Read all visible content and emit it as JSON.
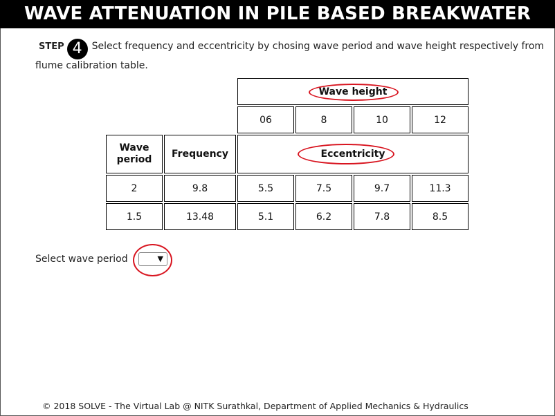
{
  "title": "WAVE ATTENUATION IN PILE BASED BREAKWATER",
  "step": {
    "label": "STEP",
    "number": "4",
    "instruction": "Select frequency and eccentricity by chosing wave period and wave height respectively from flume calibration table."
  },
  "table": {
    "wave_height_header": "Wave height",
    "wave_heights": [
      "06",
      "8",
      "10",
      "12"
    ],
    "wave_period_header": "Wave period",
    "frequency_header": "Frequency",
    "eccentricity_header": "Eccentricity",
    "rows": [
      {
        "period": "2",
        "frequency": "9.8",
        "eccentricity": [
          "5.5",
          "7.5",
          "9.7",
          "11.3"
        ]
      },
      {
        "period": "1.5",
        "frequency": "13.48",
        "eccentricity": [
          "5.1",
          "6.2",
          "7.8",
          "8.5"
        ]
      }
    ]
  },
  "select": {
    "label": "Select wave period",
    "value": "",
    "icon": "chevron-down-icon"
  },
  "footer": "© 2018 SOLVE - The Virtual Lab @ NITK Surathkal, Department of Applied Mechanics & Hydraulics",
  "colors": {
    "title_bg": "#000000",
    "highlight": "#d8141f"
  }
}
